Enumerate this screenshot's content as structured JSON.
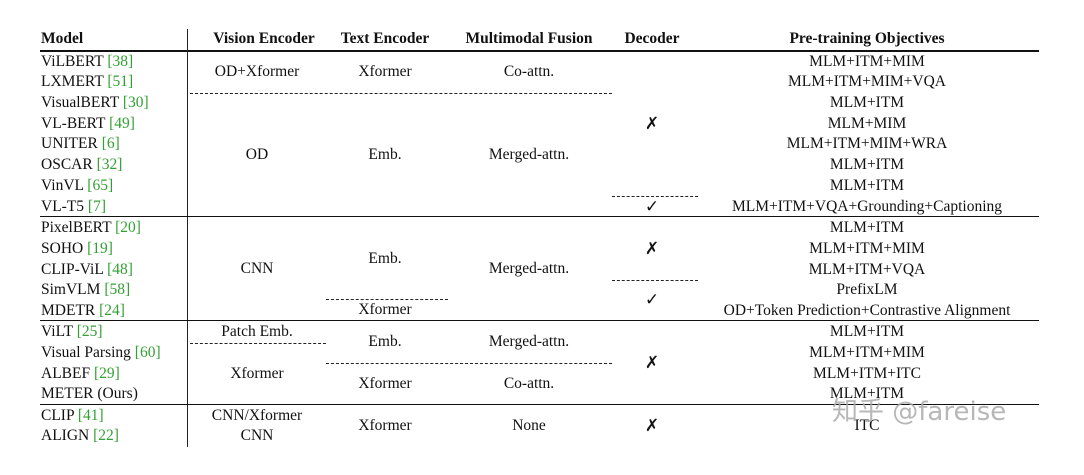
{
  "headers": {
    "model": "Model",
    "vision": "Vision Encoder",
    "text": "Text Encoder",
    "fusion": "Multimodal Fusion",
    "decoder": "Decoder",
    "objectives": "Pre-training Objectives"
  },
  "models": [
    {
      "name": "ViLBERT",
      "ref": "[38]"
    },
    {
      "name": "LXMERT",
      "ref": "[51]"
    },
    {
      "name": "VisualBERT",
      "ref": "[30]"
    },
    {
      "name": "VL-BERT",
      "ref": "[49]"
    },
    {
      "name": "UNITER",
      "ref": "[6]"
    },
    {
      "name": "OSCAR",
      "ref": "[32]"
    },
    {
      "name": "VinVL",
      "ref": "[65]"
    },
    {
      "name": "VL-T5",
      "ref": "[7]"
    },
    {
      "name": "PixelBERT",
      "ref": "[20]"
    },
    {
      "name": "SOHO",
      "ref": "[19]"
    },
    {
      "name": "CLIP-ViL",
      "ref": "[48]"
    },
    {
      "name": "SimVLM",
      "ref": "[58]"
    },
    {
      "name": "MDETR",
      "ref": "[24]"
    },
    {
      "name": "ViLT",
      "ref": "[25]"
    },
    {
      "name": "Visual Parsing",
      "ref": "[60]"
    },
    {
      "name": "ALBEF",
      "ref": "[29]"
    },
    {
      "name": "METER (Ours)",
      "ref": ""
    },
    {
      "name": "CLIP",
      "ref": "[41]"
    },
    {
      "name": "ALIGN",
      "ref": "[22]"
    }
  ],
  "objectives": [
    "MLM+ITM+MIM",
    "MLM+ITM+MIM+VQA",
    "MLM+ITM",
    "MLM+MIM",
    "MLM+ITM+MIM+WRA",
    "MLM+ITM",
    "MLM+ITM",
    "MLM+ITM+VQA+Grounding+Captioning",
    "MLM+ITM",
    "MLM+ITM+MIM",
    "MLM+ITM+VQA",
    "PrefixLM",
    "OD+Token Prediction+Contrastive Alignment",
    "MLM+ITM",
    "MLM+ITM+MIM",
    "MLM+ITM+ITC",
    "MLM+ITM",
    "ITC"
  ],
  "merged": {
    "vision_g1": "OD+Xformer",
    "text_g1": "Xformer",
    "fusion_g1": "Co-attn.",
    "vision_g2": "OD",
    "text_g2": "Emb.",
    "fusion_g2": "Merged-attn.",
    "vision_g3": "CNN",
    "text_g3a": "Emb.",
    "text_g3b": "Xformer",
    "fusion_g3": "Merged-attn.",
    "vision_g4a": "Patch Emb.",
    "vision_g4b": "Xformer",
    "text_g4a": "Emb.",
    "text_g4b": "Xformer",
    "fusion_g4a": "Merged-attn.",
    "fusion_g4b": "Co-attn.",
    "vision_g5a": "CNN/Xformer",
    "vision_g5b": "CNN",
    "text_g5": "Xformer",
    "fusion_g5": "None"
  },
  "decoder": {
    "d1": "✗",
    "d2": "✓",
    "d3": "✗",
    "d4": "✓",
    "d5": "✗",
    "d6": "✗"
  },
  "watermark": "知乎 @fareise"
}
